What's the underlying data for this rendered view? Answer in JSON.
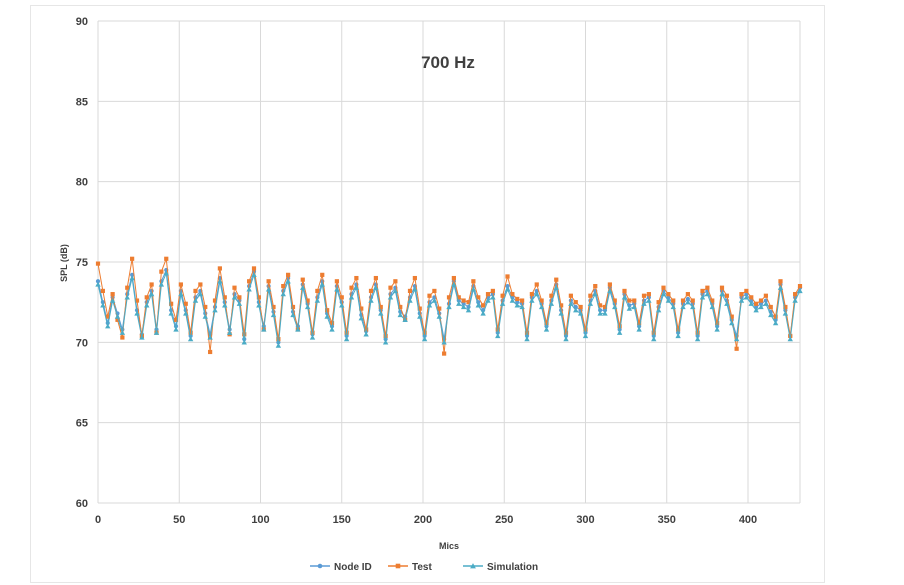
{
  "chart_data": {
    "type": "line",
    "title": "700 Hz",
    "xlabel": "Mics",
    "ylabel": "SPL (dB)",
    "xlim": [
      0,
      432
    ],
    "ylim": [
      60,
      90
    ],
    "x_ticks": [
      "0",
      "50",
      "100",
      "150",
      "200",
      "250",
      "300",
      "350",
      "400"
    ],
    "y_ticks": [
      "60",
      "65",
      "70",
      "75",
      "80",
      "85",
      "90"
    ],
    "grid": "vertical-and-horizontal",
    "legend": "bottom",
    "x": [
      0,
      3,
      6,
      9,
      12,
      15,
      18,
      21,
      24,
      27,
      30,
      33,
      36,
      39,
      42,
      45,
      48,
      51,
      54,
      57,
      60,
      63,
      66,
      69,
      72,
      75,
      78,
      81,
      84,
      87,
      90,
      93,
      96,
      99,
      102,
      105,
      108,
      111,
      114,
      117,
      120,
      123,
      126,
      129,
      132,
      135,
      138,
      141,
      144,
      147,
      150,
      153,
      156,
      159,
      162,
      165,
      168,
      171,
      174,
      177,
      180,
      183,
      186,
      189,
      192,
      195,
      198,
      201,
      204,
      207,
      210,
      213,
      216,
      219,
      222,
      225,
      228,
      231,
      234,
      237,
      240,
      243,
      246,
      249,
      252,
      255,
      258,
      261,
      264,
      267,
      270,
      273,
      276,
      279,
      282,
      285,
      288,
      291,
      294,
      297,
      300,
      303,
      306,
      309,
      312,
      315,
      318,
      321,
      324,
      327,
      330,
      333,
      336,
      339,
      342,
      345,
      348,
      351,
      354,
      357,
      360,
      363,
      366,
      369,
      372,
      375,
      378,
      381,
      384,
      387,
      390,
      393,
      396,
      399,
      402,
      405,
      408,
      411,
      414,
      417,
      420,
      423,
      426,
      429,
      432
    ],
    "series": [
      {
        "name": "Node ID",
        "color": "#5b9bd5",
        "marker": "circle",
        "values": [
          73.8,
          72.5,
          71.2,
          72.8,
          71.8,
          70.8,
          73.0,
          74.2,
          72.0,
          70.5,
          72.5,
          73.2,
          70.8,
          73.8,
          74.5,
          72.0,
          71.0,
          73.2,
          72.0,
          70.4,
          72.8,
          73.2,
          71.8,
          70.5,
          72.2,
          74.0,
          72.5,
          70.8,
          73.0,
          72.6,
          70.2,
          73.5,
          74.4,
          72.5,
          71.0,
          73.5,
          71.9,
          70.0,
          73.2,
          74.0,
          71.9,
          71.0,
          73.6,
          72.4,
          70.5,
          72.8,
          73.8,
          71.8,
          71.0,
          73.5,
          72.5,
          70.4,
          73.0,
          73.6,
          71.7,
          70.7,
          72.8,
          73.6,
          72.0,
          70.2,
          73.0,
          73.4,
          71.9,
          71.6,
          72.8,
          73.5,
          71.8,
          70.4,
          72.5,
          72.8,
          71.8,
          70.2,
          72.4,
          73.8,
          72.6,
          72.4,
          72.2,
          73.5,
          72.5,
          72.0,
          72.8,
          73.0,
          70.6,
          72.6,
          73.5,
          72.8,
          72.5,
          72.4,
          70.4,
          72.8,
          73.2,
          72.4,
          71.0,
          72.6,
          73.6,
          72.0,
          70.4,
          72.6,
          72.2,
          72.0,
          70.6,
          72.6,
          73.2,
          72.0,
          72.0,
          73.4,
          72.4,
          70.8,
          73.0,
          72.3,
          72.4,
          71.0,
          72.6,
          72.8,
          70.4,
          72.2,
          73.2,
          72.8,
          72.4,
          70.6,
          72.4,
          72.7,
          72.4,
          70.4,
          73.0,
          73.2,
          72.4,
          71.0,
          73.2,
          72.6,
          71.4,
          70.4,
          72.8,
          73.0,
          72.6,
          72.2,
          72.4,
          72.6,
          71.9,
          71.4,
          73.6,
          72.0,
          70.4,
          72.8,
          73.4
        ]
      },
      {
        "name": "Test",
        "color": "#ed7d31",
        "marker": "square",
        "values": [
          74.9,
          73.2,
          71.6,
          73.0,
          71.4,
          70.3,
          73.4,
          75.2,
          72.6,
          70.4,
          72.8,
          73.6,
          70.6,
          74.4,
          75.2,
          72.4,
          71.4,
          73.6,
          72.4,
          70.6,
          73.2,
          73.6,
          72.2,
          69.4,
          72.6,
          74.6,
          72.8,
          70.5,
          73.4,
          72.8,
          70.5,
          73.8,
          74.6,
          72.8,
          70.8,
          73.8,
          72.2,
          70.2,
          73.5,
          74.2,
          72.2,
          70.8,
          73.9,
          72.6,
          70.6,
          73.2,
          74.2,
          72.0,
          71.2,
          73.8,
          72.8,
          70.6,
          73.4,
          74.0,
          72.1,
          70.8,
          73.2,
          74.0,
          72.2,
          70.4,
          73.4,
          73.8,
          72.2,
          71.4,
          73.2,
          74.0,
          72.1,
          70.6,
          72.9,
          73.2,
          72.1,
          69.3,
          72.8,
          74.0,
          72.8,
          72.6,
          72.5,
          73.8,
          72.8,
          72.3,
          73.0,
          73.2,
          70.8,
          72.9,
          74.1,
          73.0,
          72.7,
          72.6,
          70.6,
          73.0,
          73.6,
          72.6,
          71.2,
          72.9,
          73.9,
          72.3,
          70.6,
          72.9,
          72.5,
          72.2,
          70.8,
          72.9,
          73.5,
          72.3,
          72.2,
          73.6,
          72.6,
          71.0,
          73.2,
          72.6,
          72.6,
          71.2,
          72.9,
          73.0,
          70.6,
          72.5,
          73.4,
          73.0,
          72.6,
          70.8,
          72.6,
          73.0,
          72.6,
          70.6,
          73.2,
          73.4,
          72.6,
          71.2,
          73.4,
          72.9,
          71.6,
          69.6,
          73.0,
          73.2,
          72.8,
          72.4,
          72.6,
          72.9,
          72.2,
          71.6,
          73.8,
          72.2,
          70.4,
          73.0,
          73.5
        ]
      },
      {
        "name": "Simulation",
        "color": "#4bacc6",
        "marker": "triangle",
        "values": [
          73.6,
          72.3,
          71.0,
          72.6,
          71.6,
          70.6,
          72.8,
          74.0,
          71.8,
          70.3,
          72.3,
          73.0,
          70.6,
          73.6,
          74.3,
          71.8,
          70.8,
          73.0,
          71.8,
          70.2,
          72.6,
          73.0,
          71.6,
          70.3,
          72.0,
          73.8,
          72.3,
          70.6,
          72.8,
          72.4,
          70.0,
          73.3,
          74.2,
          72.3,
          70.8,
          73.3,
          71.7,
          69.8,
          73.0,
          73.8,
          71.7,
          70.8,
          73.4,
          72.2,
          70.3,
          72.6,
          73.6,
          71.6,
          70.8,
          73.3,
          72.3,
          70.2,
          72.8,
          73.4,
          71.5,
          70.5,
          72.6,
          73.4,
          71.8,
          70.0,
          72.8,
          73.2,
          71.7,
          71.4,
          72.6,
          73.3,
          71.6,
          70.2,
          72.3,
          72.6,
          71.6,
          70.0,
          72.2,
          73.6,
          72.4,
          72.2,
          72.0,
          73.3,
          72.3,
          71.8,
          72.6,
          72.8,
          70.4,
          72.4,
          73.3,
          72.6,
          72.3,
          72.2,
          70.2,
          72.6,
          73.0,
          72.2,
          70.8,
          72.4,
          73.4,
          71.8,
          70.2,
          72.4,
          72.0,
          71.8,
          70.4,
          72.4,
          73.0,
          71.8,
          71.8,
          73.2,
          72.2,
          70.6,
          72.8,
          72.1,
          72.2,
          70.8,
          72.4,
          72.6,
          70.2,
          72.0,
          73.0,
          72.6,
          72.2,
          70.4,
          72.2,
          72.5,
          72.2,
          70.2,
          72.8,
          73.0,
          72.2,
          70.8,
          73.0,
          72.4,
          71.2,
          70.2,
          72.6,
          72.8,
          72.4,
          72.0,
          72.2,
          72.4,
          71.7,
          71.2,
          73.4,
          71.8,
          70.2,
          72.6,
          73.2
        ]
      }
    ]
  }
}
